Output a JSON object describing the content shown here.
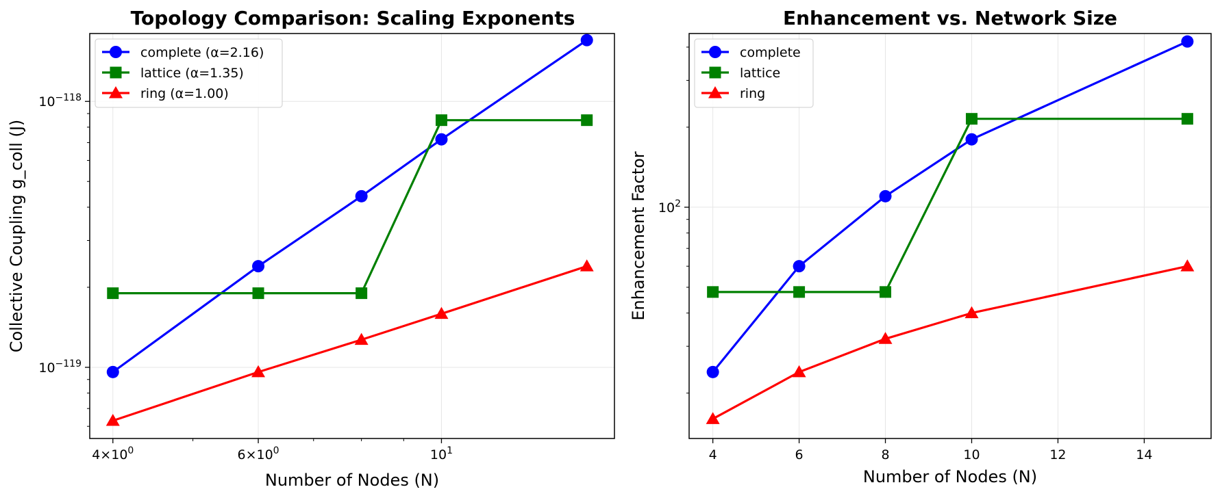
{
  "colors": {
    "complete": "#0000ff",
    "lattice": "#008000",
    "ring": "#ff0000"
  },
  "chart_data": [
    {
      "type": "line",
      "title": "Topology Comparison: Scaling Exponents",
      "xlabel": "Number of Nodes (N)",
      "ylabel": "Collective Coupling g_coll (J)",
      "xscale": "log",
      "yscale": "log",
      "xlim": [
        3.75,
        16.2
      ],
      "ylim": [
        5.4e-120,
        1.8e-118
      ],
      "grid": true,
      "legend": "top-left",
      "x_ticks": [
        {
          "value": 4,
          "base": "4×10",
          "exp": "0"
        },
        {
          "value": 6,
          "base": "6×10",
          "exp": "0"
        },
        {
          "value": 10,
          "base": "10",
          "exp": "1"
        }
      ],
      "y_ticks": [
        {
          "value": 1e-119,
          "base": "10",
          "exp": "−119"
        },
        {
          "value": 1e-118,
          "base": "10",
          "exp": "−118"
        }
      ],
      "x": [
        4,
        6,
        8,
        10,
        15
      ],
      "series": [
        {
          "name": "complete (α=2.16)",
          "key": "complete",
          "marker": "circle",
          "values": [
            9.6e-120,
            2.4e-119,
            4.4e-119,
            7.2e-119,
            1.7e-118
          ]
        },
        {
          "name": "lattice (α=1.35)",
          "key": "lattice",
          "marker": "square",
          "values": [
            1.9e-119,
            1.9e-119,
            1.9e-119,
            8.5e-119,
            8.5e-119
          ]
        },
        {
          "name": "ring (α=1.00)",
          "key": "ring",
          "marker": "triangle",
          "values": [
            6.3e-120,
            9.6e-120,
            1.27e-119,
            1.59e-119,
            2.4e-119
          ]
        }
      ]
    },
    {
      "type": "line",
      "title": "Enhancement vs. Network Size",
      "xlabel": "Number of Nodes (N)",
      "ylabel": "Enhancement Factor",
      "xscale": "linear",
      "yscale": "log",
      "xlim": [
        3.45,
        15.55
      ],
      "ylim": [
        13.5,
        450
      ],
      "grid": true,
      "legend": "top-left",
      "x_ticks": [
        {
          "value": 4,
          "label": "4"
        },
        {
          "value": 6,
          "label": "6"
        },
        {
          "value": 8,
          "label": "8"
        },
        {
          "value": 10,
          "label": "10"
        },
        {
          "value": 12,
          "label": "12"
        },
        {
          "value": 14,
          "label": "14"
        },
        {
          "value": 15,
          "label": "15",
          "hidden": true
        }
      ],
      "y_ticks": [
        {
          "value": 100,
          "base": "10",
          "exp": "2"
        }
      ],
      "x": [
        4,
        6,
        8,
        10,
        15
      ],
      "series": [
        {
          "name": "complete",
          "key": "complete",
          "marker": "circle",
          "values": [
            24,
            60,
            110,
            180,
            420
          ]
        },
        {
          "name": "lattice",
          "key": "lattice",
          "marker": "square",
          "values": [
            48,
            48,
            48,
            215,
            215
          ]
        },
        {
          "name": "ring",
          "key": "ring",
          "marker": "triangle",
          "values": [
            16,
            24,
            32,
            40,
            60
          ]
        }
      ]
    }
  ]
}
